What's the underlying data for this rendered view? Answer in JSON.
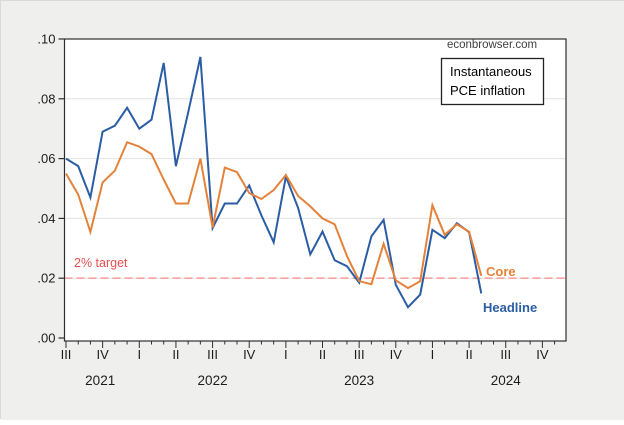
{
  "page": {
    "watermark": "econbrowser.com"
  },
  "annotation_box": {
    "line1": "Instantaneous",
    "line2": "PCE inflation"
  },
  "labels": {
    "target": "2% target",
    "core": "Core",
    "headline": "Headline"
  },
  "colors": {
    "background": "#eff0ee",
    "plot_bg": "#ffffff",
    "plot_border": "#2e2e2e",
    "grid": "#e2e2e2",
    "axis_text": "#1c1c1c",
    "watermark_text": "#3f3f3f",
    "legend_border": "#222222",
    "legend_text": "#000000",
    "headline": "#2b5da4",
    "core": "#e5823a",
    "target_line": "#f6a3a2",
    "target_text": "#e94f4d"
  },
  "chart_data": {
    "type": "line",
    "title": "Instantaneous PCE inflation",
    "source_watermark": "econbrowser.com",
    "grid": "horizontal",
    "legend_position": "inline-end-of-line-labels",
    "ylim": [
      0.0,
      0.1
    ],
    "yticks": {
      "values": [
        0.0,
        0.02,
        0.04,
        0.06,
        0.08,
        0.1
      ],
      "labels": [
        ".00",
        ".02",
        ".04",
        ".06",
        ".08",
        ".10"
      ]
    },
    "xticks": {
      "quarter_labels": [
        "III",
        "IV",
        "I",
        "II",
        "III",
        "IV",
        "I",
        "II",
        "III",
        "IV",
        "I",
        "II",
        "III",
        "IV"
      ],
      "quarter_start_month_indices": [
        0,
        3,
        6,
        9,
        12,
        15,
        18,
        21,
        24,
        27,
        30,
        33,
        36,
        39
      ],
      "year_labels": [
        {
          "text": "2021",
          "month_index": 2.8
        },
        {
          "text": "2022",
          "month_index": 12
        },
        {
          "text": "2023",
          "month_index": 24
        },
        {
          "text": "2024",
          "month_index": 36
        }
      ],
      "minor_tick_unit": "month",
      "axis_span_months": 42
    },
    "target_line": {
      "value": 0.02,
      "label": "2% target"
    },
    "months": [
      "2021-07",
      "2021-08",
      "2021-09",
      "2021-10",
      "2021-11",
      "2021-12",
      "2022-01",
      "2022-02",
      "2022-03",
      "2022-04",
      "2022-05",
      "2022-06",
      "2022-07",
      "2022-08",
      "2022-09",
      "2022-10",
      "2022-11",
      "2022-12",
      "2023-01",
      "2023-02",
      "2023-03",
      "2023-04",
      "2023-05",
      "2023-06",
      "2023-07",
      "2023-08",
      "2023-09",
      "2023-10",
      "2023-11",
      "2023-12",
      "2024-01",
      "2024-02",
      "2024-03",
      "2024-04",
      "2024-05"
    ],
    "series": [
      {
        "name": "Headline",
        "color_key": "headline",
        "values": [
          0.06,
          0.0575,
          0.047,
          0.069,
          0.071,
          0.077,
          0.07,
          0.073,
          0.092,
          0.0575,
          0.0755,
          0.094,
          0.0368,
          0.045,
          0.045,
          0.051,
          0.041,
          0.032,
          0.054,
          0.0435,
          0.028,
          0.0356,
          0.026,
          0.024,
          0.0185,
          0.034,
          0.0395,
          0.0178,
          0.0103,
          0.0145,
          0.0362,
          0.0334,
          0.0384,
          0.0354,
          0.0149
        ]
      },
      {
        "name": "Core",
        "color_key": "core",
        "values": [
          0.055,
          0.048,
          0.0355,
          0.052,
          0.056,
          0.0655,
          0.064,
          0.0615,
          0.053,
          0.045,
          0.045,
          0.06,
          0.037,
          0.057,
          0.0555,
          0.0485,
          0.0465,
          0.0495,
          0.0545,
          0.0475,
          0.044,
          0.04,
          0.038,
          0.0275,
          0.019,
          0.018,
          0.0315,
          0.0193,
          0.0167,
          0.019,
          0.0444,
          0.0345,
          0.038,
          0.0356,
          0.0208
        ]
      }
    ]
  }
}
